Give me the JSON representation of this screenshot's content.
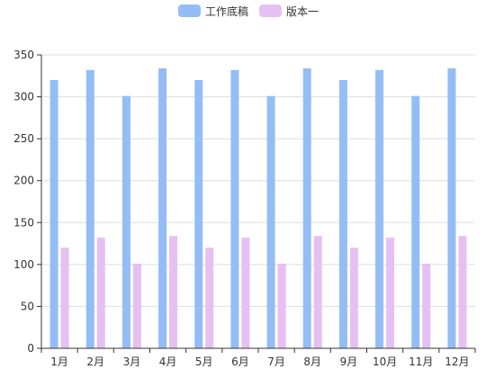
{
  "chart_data": {
    "type": "bar",
    "categories": [
      "1月",
      "2月",
      "3月",
      "4月",
      "5月",
      "6月",
      "7月",
      "8月",
      "9月",
      "10月",
      "11月",
      "12月"
    ],
    "series": [
      {
        "name": "工作底稿",
        "color": "#94bdf6",
        "values": [
          320,
          332,
          301,
          334,
          320,
          332,
          301,
          334,
          320,
          332,
          301,
          334
        ]
      },
      {
        "name": "版本一",
        "color": "#e6c0f3",
        "values": [
          120,
          132,
          101,
          134,
          120,
          132,
          101,
          134,
          120,
          132,
          101,
          134
        ]
      }
    ],
    "ylim": [
      0,
      350
    ],
    "yticks": [
      0,
      50,
      100,
      150,
      200,
      250,
      300,
      350
    ],
    "grid": true,
    "legend_position": "top-center"
  }
}
